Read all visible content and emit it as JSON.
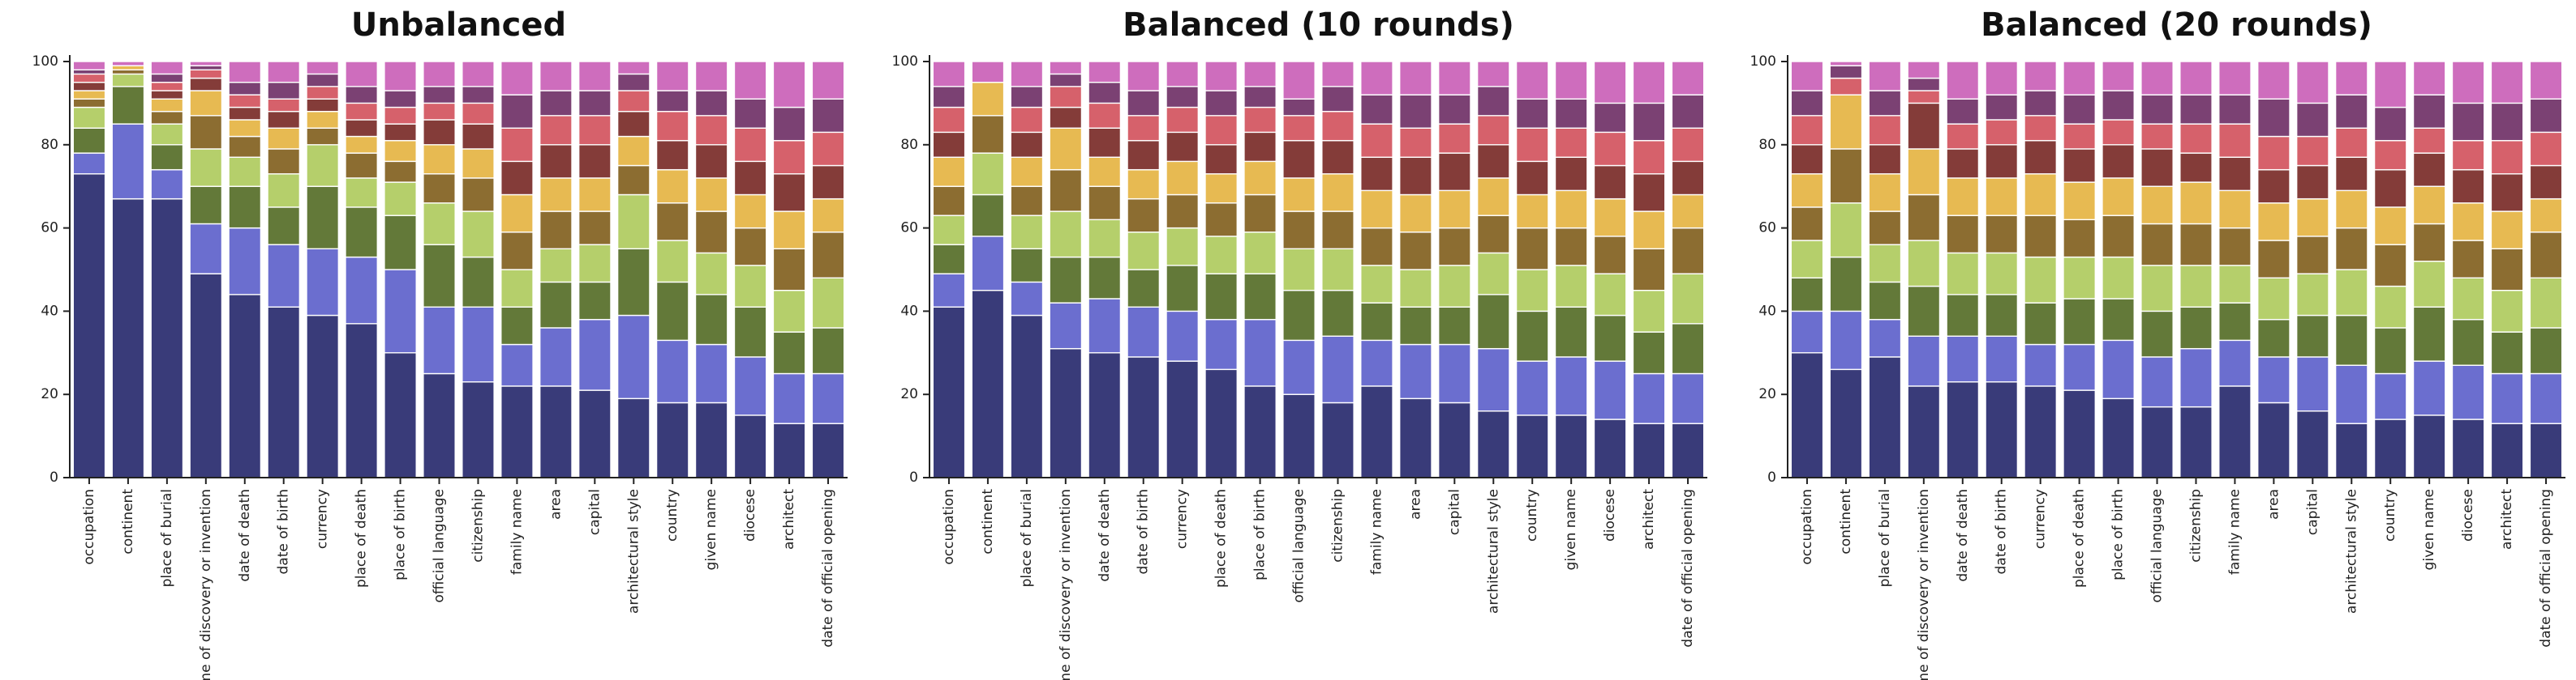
{
  "figure": {
    "categories_note": "stacked 100% bars, segments listed bottom to top",
    "palette": [
      "#393b79",
      "#6b6ecf",
      "#637939",
      "#b5cf6b",
      "#8c6d31",
      "#e7ba52",
      "#843c39",
      "#d6616b",
      "#7b4173",
      "#ce6dbd"
    ]
  },
  "chart_data": [
    {
      "type": "bar",
      "stacked": true,
      "title": "Unbalanced",
      "xlabel": "",
      "ylabel": "",
      "ylim": [
        0,
        100
      ],
      "yticks": [
        0,
        20,
        40,
        60,
        80,
        100
      ],
      "categories": [
        "occupation",
        "continent",
        "place of burial",
        "time of discovery or invention",
        "date of death",
        "date of birth",
        "currency",
        "place of death",
        "place of birth",
        "official language",
        "citizenship",
        "family name",
        "area",
        "capital",
        "architectural style",
        "country",
        "given name",
        "diocese",
        "architect",
        "date of official opening"
      ],
      "series": [
        {
          "name": "segment 1",
          "color": "#393b79",
          "values": [
            73,
            67,
            67,
            49,
            44,
            41,
            39,
            37,
            30,
            25,
            23,
            22,
            22,
            21,
            19,
            18,
            18,
            15,
            13,
            13
          ]
        },
        {
          "name": "segment 2",
          "color": "#6b6ecf",
          "values": [
            5,
            18,
            7,
            12,
            16,
            15,
            16,
            16,
            20,
            16,
            18,
            10,
            14,
            17,
            20,
            15,
            14,
            14,
            12,
            12
          ]
        },
        {
          "name": "segment 3",
          "color": "#637939",
          "values": [
            6,
            9,
            6,
            9,
            10,
            9,
            15,
            12,
            13,
            15,
            12,
            9,
            11,
            9,
            16,
            14,
            12,
            12,
            10,
            11
          ]
        },
        {
          "name": "segment 4",
          "color": "#b5cf6b",
          "values": [
            5,
            3,
            5,
            9,
            7,
            8,
            10,
            7,
            8,
            10,
            11,
            9,
            8,
            9,
            13,
            10,
            10,
            10,
            10,
            12
          ]
        },
        {
          "name": "segment 5",
          "color": "#8c6d31",
          "values": [
            2,
            1,
            3,
            8,
            5,
            6,
            4,
            6,
            5,
            7,
            8,
            9,
            9,
            8,
            7,
            9,
            10,
            9,
            10,
            11
          ]
        },
        {
          "name": "segment 6",
          "color": "#e7ba52",
          "values": [
            2,
            1,
            3,
            6,
            4,
            5,
            4,
            4,
            5,
            7,
            7,
            9,
            8,
            8,
            7,
            8,
            8,
            8,
            9,
            8
          ]
        },
        {
          "name": "segment 7",
          "color": "#843c39",
          "values": [
            2,
            0,
            2,
            3,
            3,
            4,
            3,
            4,
            4,
            6,
            6,
            8,
            8,
            8,
            6,
            7,
            8,
            8,
            9,
            8
          ]
        },
        {
          "name": "segment 8",
          "color": "#d6616b",
          "values": [
            2,
            0,
            2,
            2,
            3,
            3,
            3,
            4,
            4,
            4,
            5,
            8,
            7,
            7,
            5,
            7,
            7,
            8,
            8,
            8
          ]
        },
        {
          "name": "segment 9",
          "color": "#7b4173",
          "values": [
            1,
            0,
            2,
            1,
            3,
            4,
            3,
            4,
            4,
            4,
            4,
            8,
            6,
            6,
            4,
            5,
            6,
            7,
            8,
            8
          ]
        },
        {
          "name": "segment 10",
          "color": "#ce6dbd",
          "values": [
            2,
            1,
            3,
            1,
            5,
            5,
            3,
            6,
            7,
            6,
            6,
            8,
            7,
            7,
            3,
            7,
            7,
            9,
            11,
            9
          ]
        }
      ]
    },
    {
      "type": "bar",
      "stacked": true,
      "title": "Balanced (10 rounds)",
      "xlabel": "",
      "ylabel": "",
      "ylim": [
        0,
        100
      ],
      "yticks": [
        0,
        20,
        40,
        60,
        80,
        100
      ],
      "categories": [
        "occupation",
        "continent",
        "place of burial",
        "time of discovery or invention",
        "date of death",
        "date of birth",
        "currency",
        "place of death",
        "place of birth",
        "official language",
        "citizenship",
        "family name",
        "area",
        "capital",
        "architectural style",
        "country",
        "given name",
        "diocese",
        "architect",
        "date of official opening"
      ],
      "series": [
        {
          "name": "segment 1",
          "color": "#393b79",
          "values": [
            41,
            45,
            39,
            31,
            30,
            29,
            28,
            26,
            22,
            20,
            18,
            22,
            19,
            18,
            16,
            15,
            15,
            14,
            13,
            13
          ]
        },
        {
          "name": "segment 2",
          "color": "#6b6ecf",
          "values": [
            8,
            13,
            8,
            11,
            13,
            12,
            12,
            12,
            16,
            13,
            16,
            11,
            13,
            14,
            15,
            13,
            14,
            14,
            12,
            12
          ]
        },
        {
          "name": "segment 3",
          "color": "#637939",
          "values": [
            7,
            10,
            8,
            11,
            10,
            9,
            11,
            11,
            11,
            12,
            11,
            9,
            9,
            9,
            13,
            12,
            12,
            11,
            10,
            12
          ]
        },
        {
          "name": "segment 4",
          "color": "#b5cf6b",
          "values": [
            7,
            10,
            8,
            11,
            9,
            9,
            9,
            9,
            10,
            10,
            10,
            9,
            9,
            10,
            10,
            10,
            10,
            10,
            10,
            12
          ]
        },
        {
          "name": "segment 5",
          "color": "#8c6d31",
          "values": [
            7,
            9,
            7,
            10,
            8,
            8,
            8,
            8,
            9,
            9,
            9,
            9,
            9,
            9,
            9,
            10,
            9,
            9,
            10,
            11
          ]
        },
        {
          "name": "segment 6",
          "color": "#e7ba52",
          "values": [
            7,
            8,
            7,
            10,
            7,
            7,
            8,
            7,
            8,
            8,
            9,
            9,
            9,
            9,
            9,
            8,
            9,
            9,
            9,
            8
          ]
        },
        {
          "name": "segment 7",
          "color": "#843c39",
          "values": [
            6,
            0,
            6,
            5,
            7,
            7,
            7,
            7,
            7,
            9,
            8,
            8,
            9,
            9,
            8,
            8,
            8,
            8,
            9,
            8
          ]
        },
        {
          "name": "segment 8",
          "color": "#d6616b",
          "values": [
            6,
            0,
            6,
            5,
            6,
            6,
            6,
            7,
            6,
            6,
            7,
            8,
            7,
            7,
            7,
            8,
            7,
            8,
            8,
            8
          ]
        },
        {
          "name": "segment 9",
          "color": "#7b4173",
          "values": [
            5,
            0,
            5,
            3,
            5,
            6,
            5,
            6,
            5,
            4,
            6,
            7,
            8,
            7,
            7,
            7,
            7,
            7,
            9,
            8
          ]
        },
        {
          "name": "segment 10",
          "color": "#ce6dbd",
          "values": [
            6,
            5,
            6,
            3,
            5,
            7,
            6,
            7,
            6,
            9,
            6,
            8,
            8,
            8,
            6,
            9,
            9,
            10,
            10,
            8
          ]
        }
      ]
    },
    {
      "type": "bar",
      "stacked": true,
      "title": "Balanced (20 rounds)",
      "xlabel": "",
      "ylabel": "",
      "ylim": [
        0,
        100
      ],
      "yticks": [
        0,
        20,
        40,
        60,
        80,
        100
      ],
      "categories": [
        "occupation",
        "continent",
        "place of burial",
        "time of discovery or invention",
        "date of death",
        "date of birth",
        "currency",
        "place of death",
        "place of birth",
        "official language",
        "citizenship",
        "family name",
        "area",
        "capital",
        "architectural style",
        "country",
        "given name",
        "diocese",
        "architect",
        "date of official opening"
      ],
      "series": [
        {
          "name": "segment 1",
          "color": "#393b79",
          "values": [
            30,
            26,
            29,
            22,
            23,
            23,
            22,
            21,
            19,
            17,
            17,
            22,
            18,
            16,
            13,
            14,
            15,
            14,
            13,
            13
          ]
        },
        {
          "name": "segment 2",
          "color": "#6b6ecf",
          "values": [
            10,
            14,
            9,
            12,
            11,
            11,
            10,
            11,
            14,
            12,
            14,
            11,
            11,
            13,
            14,
            11,
            13,
            13,
            12,
            12
          ]
        },
        {
          "name": "segment 3",
          "color": "#637939",
          "values": [
            8,
            13,
            9,
            12,
            10,
            10,
            10,
            11,
            10,
            11,
            10,
            9,
            9,
            10,
            12,
            11,
            13,
            11,
            10,
            11
          ]
        },
        {
          "name": "segment 4",
          "color": "#b5cf6b",
          "values": [
            9,
            13,
            9,
            11,
            10,
            10,
            11,
            10,
            10,
            11,
            10,
            9,
            10,
            10,
            11,
            10,
            11,
            10,
            10,
            12
          ]
        },
        {
          "name": "segment 5",
          "color": "#8c6d31",
          "values": [
            8,
            13,
            8,
            11,
            9,
            9,
            10,
            9,
            10,
            10,
            10,
            9,
            9,
            9,
            10,
            10,
            9,
            9,
            10,
            11
          ]
        },
        {
          "name": "segment 6",
          "color": "#e7ba52",
          "values": [
            8,
            13,
            9,
            11,
            9,
            9,
            10,
            9,
            9,
            9,
            10,
            9,
            9,
            9,
            9,
            9,
            9,
            9,
            9,
            8
          ]
        },
        {
          "name": "segment 7",
          "color": "#843c39",
          "values": [
            7,
            0,
            7,
            11,
            7,
            8,
            8,
            8,
            8,
            9,
            7,
            8,
            8,
            8,
            8,
            9,
            8,
            8,
            9,
            8
          ]
        },
        {
          "name": "segment 8",
          "color": "#d6616b",
          "values": [
            7,
            4,
            7,
            3,
            6,
            6,
            6,
            6,
            6,
            6,
            7,
            8,
            8,
            7,
            7,
            7,
            6,
            7,
            8,
            8
          ]
        },
        {
          "name": "segment 9",
          "color": "#7b4173",
          "values": [
            6,
            3,
            6,
            3,
            6,
            6,
            6,
            7,
            7,
            7,
            7,
            7,
            9,
            8,
            8,
            8,
            8,
            9,
            9,
            8
          ]
        },
        {
          "name": "segment 10",
          "color": "#ce6dbd",
          "values": [
            7,
            1,
            7,
            4,
            9,
            8,
            7,
            8,
            7,
            8,
            8,
            8,
            9,
            10,
            8,
            11,
            8,
            10,
            10,
            9
          ]
        }
      ]
    }
  ]
}
